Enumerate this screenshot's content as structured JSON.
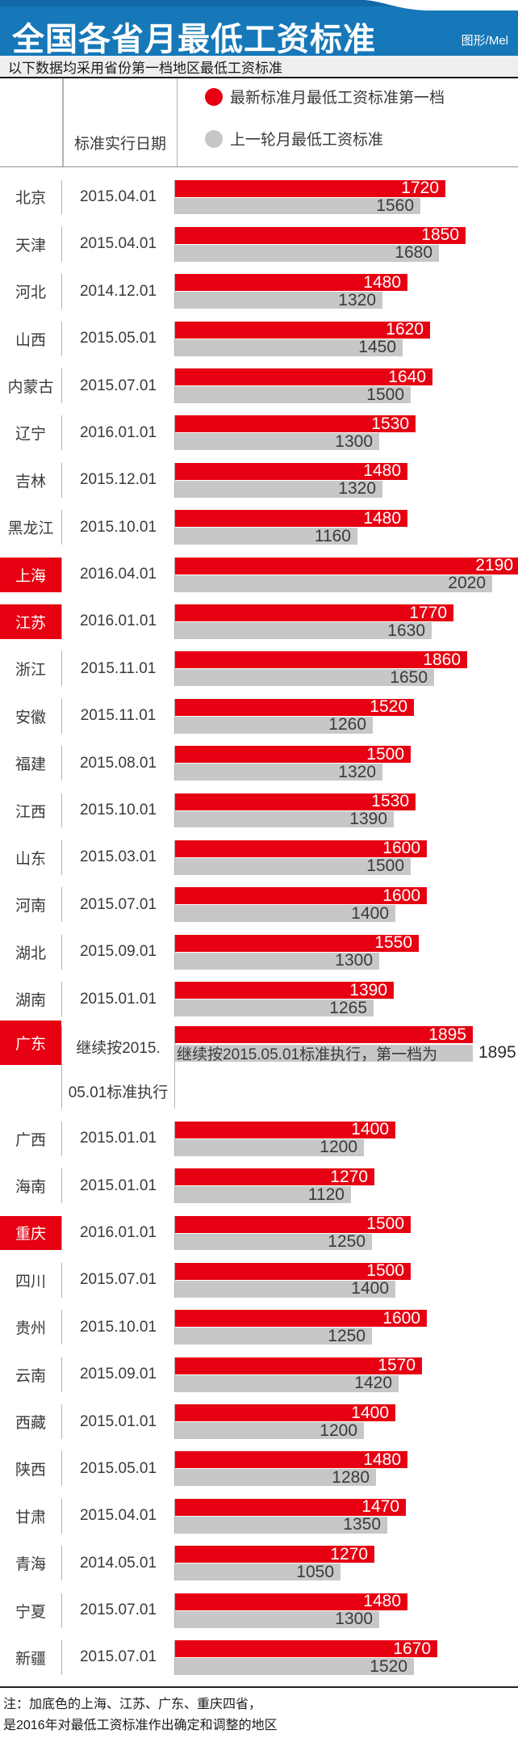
{
  "header": {
    "title": "全国各省月最低工资标准",
    "credit": "图形/Mel"
  },
  "subtitle": {
    "text": "以下数据均采用省份第一档地区最低工资标准"
  },
  "table_header": {
    "date_col": "标准实行日期"
  },
  "legend": [
    {
      "label": "最新标准月最低工资标准第一档",
      "color": "#e60012"
    },
    {
      "label": "上一轮月最低工资标准",
      "color": "#c7c7c7"
    }
  ],
  "colors": {
    "header_blue": "#1678b8",
    "bar_new_red": "#e60012",
    "bar_old_gray": "#c7c7c7",
    "highlight_red": "#e60012"
  },
  "chart_data": {
    "type": "bar",
    "orientation": "horizontal",
    "series": [
      "最新标准月最低工资标准第一档",
      "上一轮月最低工资标准"
    ],
    "rows": [
      {
        "province": "北京",
        "date": "2015.04.01",
        "new": 1720,
        "old": 1560,
        "highlight": false
      },
      {
        "province": "天津",
        "date": "2015.04.01",
        "new": 1850,
        "old": 1680,
        "highlight": false
      },
      {
        "province": "河北",
        "date": "2014.12.01",
        "new": 1480,
        "old": 1320,
        "highlight": false
      },
      {
        "province": "山西",
        "date": "2015.05.01",
        "new": 1620,
        "old": 1450,
        "highlight": false
      },
      {
        "province": "内蒙古",
        "date": "2015.07.01",
        "new": 1640,
        "old": 1500,
        "highlight": false
      },
      {
        "province": "辽宁",
        "date": "2016.01.01",
        "new": 1530,
        "old": 1300,
        "highlight": false
      },
      {
        "province": "吉林",
        "date": "2015.12.01",
        "new": 1480,
        "old": 1320,
        "highlight": false
      },
      {
        "province": "黑龙江",
        "date": "2015.10.01",
        "new": 1480,
        "old": 1160,
        "highlight": false
      },
      {
        "province": "上海",
        "date": "2016.04.01",
        "new": 2190,
        "old": 2020,
        "highlight": true
      },
      {
        "province": "江苏",
        "date": "2016.01.01",
        "new": 1770,
        "old": 1630,
        "highlight": true
      },
      {
        "province": "浙江",
        "date": "2015.11.01",
        "new": 1860,
        "old": 1650,
        "highlight": false
      },
      {
        "province": "安徽",
        "date": "2015.11.01",
        "new": 1520,
        "old": 1260,
        "highlight": false
      },
      {
        "province": "福建",
        "date": "2015.08.01",
        "new": 1500,
        "old": 1320,
        "highlight": false
      },
      {
        "province": "江西",
        "date": "2015.10.01",
        "new": 1530,
        "old": 1390,
        "highlight": false
      },
      {
        "province": "山东",
        "date": "2015.03.01",
        "new": 1600,
        "old": 1500,
        "highlight": false
      },
      {
        "province": "河南",
        "date": "2015.07.01",
        "new": 1600,
        "old": 1400,
        "highlight": false
      },
      {
        "province": "湖北",
        "date": "2015.09.01",
        "new": 1550,
        "old": 1300,
        "highlight": false
      },
      {
        "province": "湖南",
        "date": "2015.01.01",
        "new": 1390,
        "old": 1265,
        "highlight": false
      },
      {
        "province": "广东",
        "date": "继续按2015.05.01标准执行",
        "date_lines": [
          "继续按2015.",
          "05.01标准执行"
        ],
        "new": 1895,
        "old": 1895,
        "highlight": true,
        "special": true,
        "old_bar_note": "继续按2015.05.01标准执行，第一档为",
        "old_value_outside": "1895"
      },
      {
        "province": "广西",
        "date": "2015.01.01",
        "new": 1400,
        "old": 1200,
        "highlight": false
      },
      {
        "province": "海南",
        "date": "2015.01.01",
        "new": 1270,
        "old": 1120,
        "highlight": false
      },
      {
        "province": "重庆",
        "date": "2016.01.01",
        "new": 1500,
        "old": 1250,
        "highlight": true
      },
      {
        "province": "四川",
        "date": "2015.07.01",
        "new": 1500,
        "old": 1400,
        "highlight": false
      },
      {
        "province": "贵州",
        "date": "2015.10.01",
        "new": 1600,
        "old": 1250,
        "highlight": false
      },
      {
        "province": "云南",
        "date": "2015.09.01",
        "new": 1570,
        "old": 1420,
        "highlight": false
      },
      {
        "province": "西藏",
        "date": "2015.01.01",
        "new": 1400,
        "old": 1200,
        "highlight": false
      },
      {
        "province": "陕西",
        "date": "2015.05.01",
        "new": 1480,
        "old": 1280,
        "highlight": false
      },
      {
        "province": "甘肃",
        "date": "2015.04.01",
        "new": 1470,
        "old": 1350,
        "highlight": false
      },
      {
        "province": "青海",
        "date": "2014.05.01",
        "new": 1270,
        "old": 1050,
        "highlight": false
      },
      {
        "province": "宁夏",
        "date": "2015.07.01",
        "new": 1480,
        "old": 1300,
        "highlight": false
      },
      {
        "province": "新疆",
        "date": "2015.07.01",
        "new": 1670,
        "old": 1520,
        "highlight": false
      }
    ]
  },
  "notes": [
    "注：加底色的上海、江苏、广东、重庆四省，",
    "是2016年对最低工资标准作出确定和调整的地区"
  ]
}
